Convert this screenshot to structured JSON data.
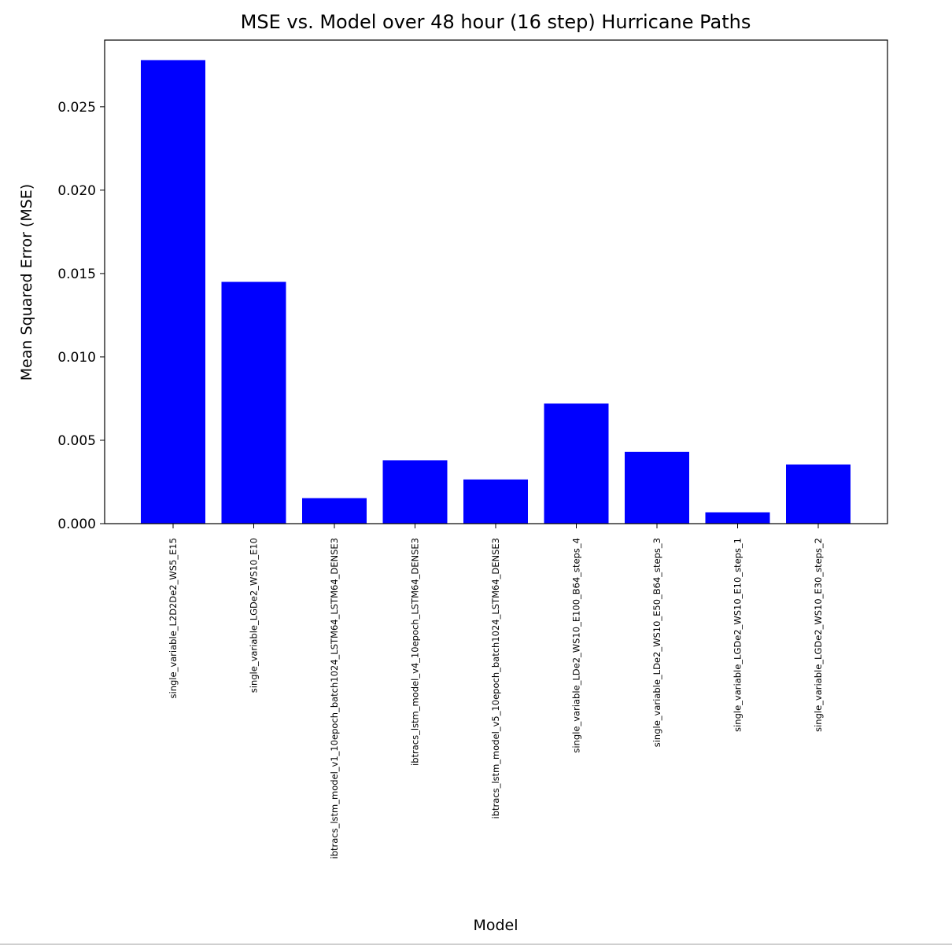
{
  "chart_data": {
    "type": "bar",
    "title": "MSE vs. Model over 48 hour (16 step) Hurricane Paths",
    "xlabel": "Model",
    "ylabel": "Mean Squared Error (MSE)",
    "categories": [
      "single_variable_L2D2De2_WS5_E15",
      "single_variable_LGDe2_WS10_E10",
      "ibtracs_lstm_model_v1_10epoch_batch1024_LSTM64_LSTM64_DENSE3",
      "ibtracs_lstm_model_v4_10epoch_LSTM64_DENSE3",
      "ibtracs_lstm_model_v5_10epoch_batch1024_LSTM64_DENSE3",
      "single_variable_LDe2_WS10_E100_B64_steps_4",
      "single_variable_LDe2_WS10_E50_B64_steps_3",
      "single_variable_LGDe2_WS10_E10_steps_1",
      "single_variable_LGDe2_WS10_E30_steps_2"
    ],
    "values": [
      0.0278,
      0.0145,
      0.00153,
      0.0038,
      0.00265,
      0.0072,
      0.0043,
      0.00068,
      0.00355
    ],
    "ylim": [
      0,
      0.029
    ],
    "yticks": [
      "0.000",
      "0.005",
      "0.010",
      "0.015",
      "0.020",
      "0.025"
    ],
    "ytick_values": [
      0,
      0.005,
      0.01,
      0.015,
      0.02,
      0.025
    ],
    "bar_color": "#0000ff",
    "grid": false,
    "legend": "none"
  }
}
